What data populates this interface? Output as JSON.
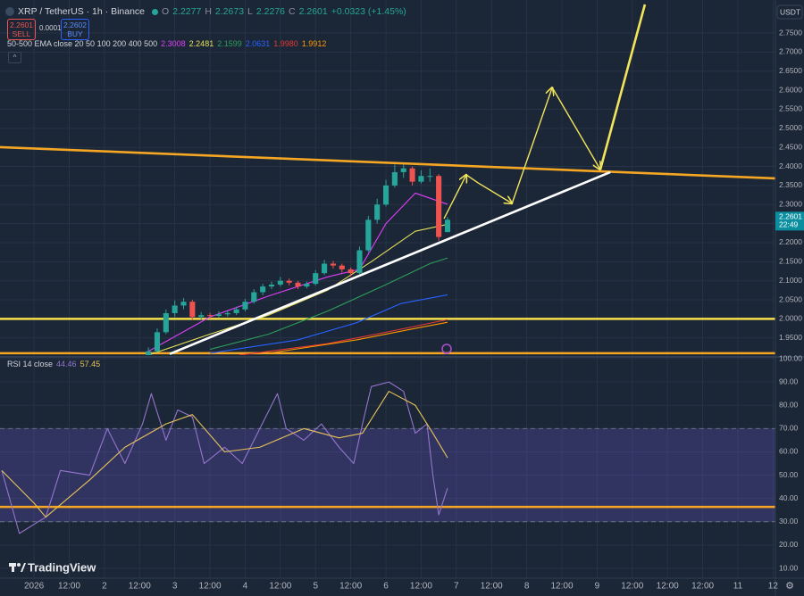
{
  "chart_data": {
    "type": "candlestick",
    "title": "XRP / TetherUS · 1h · Binance",
    "ohlc_labels": [
      "O",
      "H",
      "L",
      "C"
    ],
    "ohlc_values": [
      2.2277,
      2.2673,
      2.2276,
      2.2601
    ],
    "change": "+0.0323 (+1.45%)",
    "sell_price": 2.2601,
    "sell_label": "SELL",
    "spread": 0.0001,
    "buy_price": 2.2602,
    "buy_label": "BUY",
    "ema_title": "50-500 EMA close 20 50 100 200 400 500",
    "currency": "USDT",
    "brand": "TradingView",
    "countdown": "22:49",
    "grid": true,
    "up_color": "#26a69a",
    "down_color": "#ef5350",
    "last_price_color": "#0b8fa0",
    "xlim": [
      -11.6,
      252.8
    ],
    "xticks": [
      {
        "value": 0,
        "label": "2026"
      },
      {
        "value": 12,
        "label": "12:00"
      },
      {
        "value": 24,
        "label": "2"
      },
      {
        "value": 36,
        "label": "12:00"
      },
      {
        "value": 48,
        "label": "3"
      },
      {
        "value": 60,
        "label": "12:00"
      },
      {
        "value": 72,
        "label": "4"
      },
      {
        "value": 84,
        "label": "12:00"
      },
      {
        "value": 96,
        "label": "5"
      },
      {
        "value": 108,
        "label": "12:00"
      },
      {
        "value": 120,
        "label": "6"
      },
      {
        "value": 132,
        "label": "12:00"
      },
      {
        "value": 144,
        "label": "7"
      },
      {
        "value": 156,
        "label": "12:00"
      },
      {
        "value": 168,
        "label": "8"
      },
      {
        "value": 180,
        "label": "12:00"
      },
      {
        "value": 192,
        "label": "9"
      },
      {
        "value": 204,
        "label": "12:00"
      },
      {
        "value": 216,
        "label": "12:00"
      },
      {
        "value": 228,
        "label": "12:00"
      },
      {
        "value": 240,
        "label": "11"
      },
      {
        "value": 252,
        "label": "12"
      }
    ],
    "ylim": [
      1.905,
      2.825
    ],
    "yticks": [
      {
        "value": 1.95,
        "label": "1.9500"
      },
      {
        "value": 2.0,
        "label": "2.0000"
      },
      {
        "value": 2.05,
        "label": "2.0500"
      },
      {
        "value": 2.1,
        "label": "2.1000"
      },
      {
        "value": 2.15,
        "label": "2.1500"
      },
      {
        "value": 2.2,
        "label": "2.2000"
      },
      {
        "value": 2.25,
        "label": "2.2500"
      },
      {
        "value": 2.3,
        "label": "2.3000"
      },
      {
        "value": 2.35,
        "label": "2.3500"
      },
      {
        "value": 2.4,
        "label": "2.4000"
      },
      {
        "value": 2.45,
        "label": "2.4500"
      },
      {
        "value": 2.5,
        "label": "2.5000"
      },
      {
        "value": 2.55,
        "label": "2.5500"
      },
      {
        "value": 2.6,
        "label": "2.6000"
      },
      {
        "value": 2.65,
        "label": "2.6500"
      },
      {
        "value": 2.7,
        "label": "2.7000"
      },
      {
        "value": 2.75,
        "label": "2.7500"
      }
    ],
    "candles": {
      "x": [
        39,
        42,
        45,
        48,
        51,
        54,
        57,
        60,
        63,
        66,
        69,
        72,
        75,
        78,
        81,
        84,
        87,
        90,
        93,
        96,
        99,
        102,
        105,
        108,
        111,
        114,
        117,
        120,
        123,
        126,
        129,
        132,
        135,
        138,
        141
      ],
      "open": [
        1.905,
        1.915,
        1.965,
        2.015,
        2.035,
        2.045,
        2.005,
        2.01,
        2.008,
        2.012,
        2.015,
        2.025,
        2.045,
        2.07,
        2.085,
        2.09,
        2.1,
        2.095,
        2.085,
        2.092,
        2.12,
        2.145,
        2.14,
        2.13,
        2.12,
        2.18,
        2.26,
        2.3,
        2.35,
        2.385,
        2.395,
        2.36,
        2.375,
        2.375,
        2.2277
      ],
      "high": [
        1.925,
        1.975,
        2.025,
        2.048,
        2.055,
        2.05,
        2.018,
        2.016,
        2.02,
        2.022,
        2.032,
        2.052,
        2.078,
        2.092,
        2.098,
        2.11,
        2.106,
        2.1,
        2.098,
        2.128,
        2.155,
        2.152,
        2.145,
        2.135,
        2.19,
        2.27,
        2.315,
        2.365,
        2.405,
        2.41,
        2.4,
        2.39,
        2.395,
        2.38,
        2.2673
      ],
      "low": [
        1.905,
        1.912,
        1.96,
        2.005,
        2.025,
        1.998,
        1.998,
        2.0,
        2.002,
        2.006,
        2.01,
        2.02,
        2.04,
        2.062,
        2.078,
        2.085,
        2.088,
        2.078,
        2.08,
        2.088,
        2.115,
        2.132,
        2.122,
        2.112,
        2.118,
        2.175,
        2.25,
        2.295,
        2.345,
        2.37,
        2.35,
        2.355,
        2.36,
        2.205,
        2.2276
      ],
      "close": [
        1.915,
        1.965,
        2.015,
        2.035,
        2.045,
        2.005,
        2.01,
        2.008,
        2.012,
        2.015,
        2.025,
        2.045,
        2.07,
        2.085,
        2.09,
        2.1,
        2.095,
        2.085,
        2.092,
        2.12,
        2.145,
        2.14,
        2.13,
        2.12,
        2.18,
        2.26,
        2.3,
        2.35,
        2.385,
        2.395,
        2.36,
        2.375,
        2.375,
        2.215,
        2.2601
      ]
    },
    "ema": [
      {
        "color": "#e040fb",
        "x": [
          39,
          60,
          80,
          100,
          111,
          120,
          130,
          141
        ],
        "values": [
          1.915,
          2.005,
          2.06,
          2.11,
          2.13,
          2.25,
          2.33,
          2.3008
        ],
        "value_labels": [
          null,
          null,
          null,
          null,
          null,
          null,
          null,
          "2.3008"
        ]
      },
      {
        "color": "#e6e05a",
        "x": [
          39,
          60,
          80,
          100,
          115,
          130,
          141
        ],
        "values": [
          1.905,
          1.96,
          2.01,
          2.075,
          2.15,
          2.23,
          2.2481
        ],
        "value_labels": [
          null,
          null,
          null,
          null,
          null,
          null,
          "2.2481"
        ]
      },
      {
        "color": "#2e9e5b",
        "x": [
          60,
          80,
          100,
          120,
          135,
          141
        ],
        "values": [
          1.92,
          1.96,
          2.02,
          2.09,
          2.145,
          2.1599
        ],
        "value_labels": [
          null,
          null,
          null,
          null,
          null,
          "2.1599"
        ]
      },
      {
        "color": "#2962ff",
        "x": [
          60,
          90,
          110,
          125,
          141
        ],
        "values": [
          1.91,
          1.945,
          1.99,
          2.04,
          2.0631
        ],
        "value_labels": [
          null,
          null,
          null,
          null,
          "2.0631"
        ]
      },
      {
        "color": "#e53935",
        "x": [
          70,
          100,
          120,
          141
        ],
        "values": [
          1.905,
          1.935,
          1.965,
          1.998
        ],
        "value_labels": [
          null,
          null,
          null,
          "1.9980"
        ]
      },
      {
        "color": "#ff9800",
        "x": [
          80,
          110,
          130,
          141
        ],
        "values": [
          1.91,
          1.945,
          1.975,
          1.9912
        ],
        "value_labels": [
          null,
          null,
          null,
          "1.9912"
        ]
      }
    ],
    "levels": [
      {
        "value": 2.0,
        "color": "#f5e04a"
      },
      {
        "value": 1.91,
        "color": "#f5a623"
      }
    ],
    "drawings": [
      {
        "color": "#f5a623",
        "arrow": false,
        "x": [
          -11.6,
          252.8
        ],
        "values": [
          2.4506,
          2.3687
        ]
      },
      {
        "color": "#ffffff",
        "arrow": false,
        "x": [
          46.3,
          196.5
        ],
        "values": [
          1.908,
          2.385
        ]
      },
      {
        "color": "#f2e55c",
        "arrow": true,
        "x": [
          139.8,
          147.4
        ],
        "values": [
          2.263,
          2.378
        ]
      },
      {
        "color": "#f2e55c",
        "arrow": true,
        "x": [
          147.4,
          151.4,
          163.0
        ],
        "values": [
          2.378,
          2.357,
          2.303
        ]
      },
      {
        "color": "#f2e55c",
        "arrow": true,
        "x": [
          163.0,
          176.7
        ],
        "values": [
          2.303,
          2.607
        ]
      },
      {
        "color": "#f2e55c",
        "arrow": true,
        "x": [
          176.7,
          193.1
        ],
        "values": [
          2.607,
          2.392
        ]
      },
      {
        "color": "#f2e55c",
        "arrow": false,
        "x": [
          193.1,
          208.3
        ],
        "values": [
          2.392,
          2.825
        ]
      }
    ],
    "rsi": {
      "title": "RSI 14 close",
      "ylim": [
        5.8,
        100
      ],
      "yticks": [
        {
          "value": 10,
          "label": "10.00"
        },
        {
          "value": 20,
          "label": "20.00"
        },
        {
          "value": 30,
          "label": "30.00"
        },
        {
          "value": 40,
          "label": "40.00"
        },
        {
          "value": 50,
          "label": "50.00"
        },
        {
          "value": 60,
          "label": "60.00"
        },
        {
          "value": 70,
          "label": "70.00"
        },
        {
          "value": 80,
          "label": "80.00"
        },
        {
          "value": 90,
          "label": "90.00"
        },
        {
          "value": 100,
          "label": "100.00"
        }
      ],
      "band": [
        30,
        70
      ],
      "band_color": "#5c4fb0",
      "levels": [
        {
          "value": 36.4,
          "color": "#f5a623"
        }
      ],
      "series": [
        {
          "color": "#9575cd",
          "x": [
            -11,
            -5,
            4,
            9,
            19,
            25,
            31,
            37,
            40,
            45,
            49,
            54,
            58,
            65,
            71,
            77,
            83,
            86,
            92,
            98,
            104,
            109,
            112,
            115,
            121,
            126,
            130,
            134,
            136,
            138,
            141
          ],
          "values": [
            52,
            25,
            32,
            52,
            50,
            70,
            55,
            72,
            85,
            65,
            78,
            75,
            55,
            62,
            55,
            70,
            85,
            70,
            65,
            72,
            62,
            55,
            72,
            88,
            90,
            86,
            68,
            72,
            50,
            33,
            44.46
          ]
        },
        {
          "color": "#e8c35a",
          "x": [
            -11,
            0,
            4,
            19,
            31,
            45,
            54,
            65,
            77,
            92,
            104,
            112,
            121,
            130,
            136,
            141
          ],
          "values": [
            52,
            38,
            32,
            48,
            62,
            72,
            76,
            60,
            62,
            70,
            66,
            68,
            86,
            80,
            68,
            57.45
          ]
        }
      ]
    }
  }
}
